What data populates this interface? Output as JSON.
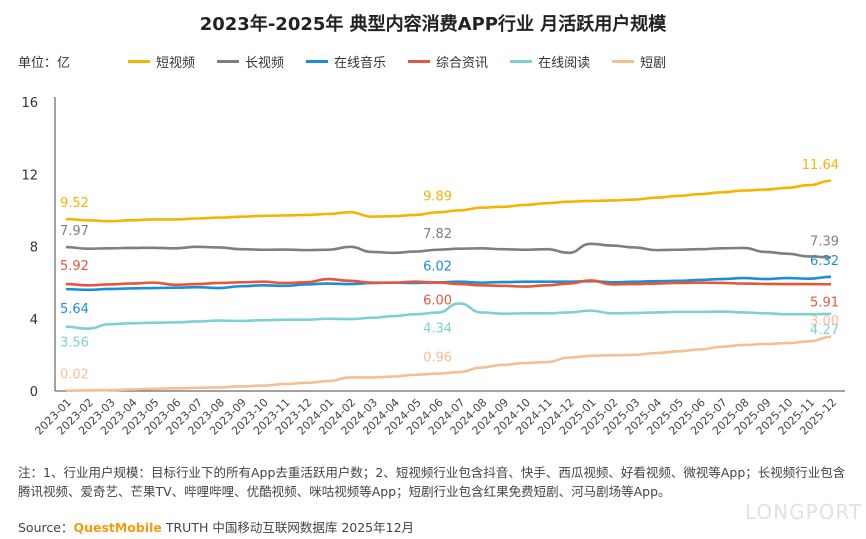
{
  "title": "2023年-2025年 典型内容消费APP行业 月活跃用户规模",
  "unit": "单位：亿",
  "notes": "注：1、行业用户规模：目标行业下的所有App去重活跃用户数；2、短视频行业包含抖音、快手、西瓜视频、好看视频、微视等App；长视频行业包含腾讯视频、爱奇艺、芒果TV、哔哩哔哩、优酷视频、咪咕视频等App；短剧行业包含红果免费短剧、河马剧场等App。",
  "source": {
    "prefix": "Source：",
    "brand": "QuestMobile",
    "rest": " TRUTH 中国移动互联网数据库 2025年12月"
  },
  "watermark": "LONGPORT",
  "chart_data": {
    "type": "line",
    "title": "2023年-2025年 典型内容消费APP行业 月活跃用户规模",
    "ylabel": "单位：亿",
    "ylim": [
      0,
      16
    ],
    "yticks": [
      0,
      4,
      8,
      12,
      16
    ],
    "legend": "top",
    "x": [
      "2023-01",
      "2023-02",
      "2023-03",
      "2023-04",
      "2023-05",
      "2023-06",
      "2023-07",
      "2023-08",
      "2023-09",
      "2023-10",
      "2023-11",
      "2023-12",
      "2024-01",
      "2024-02",
      "2024-03",
      "2024-04",
      "2024-05",
      "2024-06",
      "2024-07",
      "2024-08",
      "2024-09",
      "2024-10",
      "2024-11",
      "2024-12",
      "2025-01",
      "2025-02",
      "2025-03",
      "2025-04",
      "2025-05",
      "2025-06",
      "2025-07",
      "2025-08",
      "2025-09",
      "2025-10",
      "2025-11",
      "2025-12"
    ],
    "series": [
      {
        "name": "短视频",
        "color": "#f5b400",
        "labels": [
          0,
          17,
          35
        ],
        "label_pos": "above",
        "values": [
          9.52,
          9.45,
          9.4,
          9.45,
          9.5,
          9.5,
          9.55,
          9.6,
          9.65,
          9.7,
          9.72,
          9.75,
          9.8,
          9.9,
          9.65,
          9.68,
          9.75,
          9.89,
          10.0,
          10.15,
          10.2,
          10.3,
          10.4,
          10.48,
          10.52,
          10.55,
          10.6,
          10.7,
          10.8,
          10.9,
          11.0,
          11.1,
          11.15,
          11.25,
          11.4,
          11.64
        ]
      },
      {
        "name": "长视频",
        "color": "#7f7f7f",
        "labels": [
          0,
          17,
          35
        ],
        "label_pos": "above",
        "values": [
          7.97,
          7.88,
          7.9,
          7.92,
          7.93,
          7.9,
          7.98,
          7.95,
          7.85,
          7.82,
          7.83,
          7.8,
          7.82,
          7.98,
          7.7,
          7.65,
          7.72,
          7.82,
          7.88,
          7.9,
          7.85,
          7.82,
          7.85,
          7.65,
          8.15,
          8.05,
          7.95,
          7.8,
          7.82,
          7.85,
          7.9,
          7.92,
          7.7,
          7.6,
          7.45,
          7.39
        ]
      },
      {
        "name": "在线音乐",
        "color": "#1a8fd6",
        "labels": [
          0,
          17,
          35
        ],
        "label_pos": "music",
        "values": [
          5.64,
          5.6,
          5.65,
          5.68,
          5.7,
          5.72,
          5.75,
          5.7,
          5.8,
          5.85,
          5.82,
          5.9,
          5.95,
          5.92,
          5.98,
          6.0,
          5.98,
          6.02,
          6.05,
          6.0,
          6.03,
          6.05,
          6.05,
          6.05,
          6.08,
          6.02,
          6.05,
          6.08,
          6.1,
          6.15,
          6.2,
          6.25,
          6.2,
          6.25,
          6.22,
          6.32
        ]
      },
      {
        "name": "综合资讯",
        "color": "#e5573a",
        "labels": [
          0,
          17,
          35
        ],
        "label_pos": "news",
        "values": [
          5.92,
          5.85,
          5.9,
          5.95,
          6.0,
          5.88,
          5.92,
          5.98,
          6.02,
          6.05,
          5.98,
          6.02,
          6.2,
          6.1,
          6.0,
          6.0,
          6.05,
          6.0,
          5.92,
          5.85,
          5.82,
          5.78,
          5.85,
          5.95,
          6.12,
          5.9,
          5.92,
          5.95,
          5.98,
          6.0,
          5.98,
          5.95,
          5.93,
          5.92,
          5.92,
          5.91
        ]
      },
      {
        "name": "在线阅读",
        "color": "#7fd0d4",
        "labels": [
          0,
          17,
          35
        ],
        "label_pos": "below",
        "values": [
          3.56,
          3.45,
          3.7,
          3.75,
          3.78,
          3.8,
          3.85,
          3.9,
          3.88,
          3.92,
          3.95,
          3.95,
          4.0,
          3.98,
          4.05,
          4.15,
          4.25,
          4.34,
          4.85,
          4.35,
          4.28,
          4.3,
          4.3,
          4.35,
          4.45,
          4.3,
          4.32,
          4.35,
          4.38,
          4.38,
          4.4,
          4.35,
          4.3,
          4.25,
          4.25,
          4.27
        ]
      },
      {
        "name": "短剧",
        "color": "#f7be92",
        "labels": [
          0,
          17,
          35
        ],
        "label_pos": "above",
        "values": [
          0.02,
          0.03,
          0.05,
          0.08,
          0.12,
          0.15,
          0.18,
          0.2,
          0.25,
          0.3,
          0.38,
          0.45,
          0.55,
          0.75,
          0.75,
          0.8,
          0.9,
          0.96,
          1.05,
          1.3,
          1.45,
          1.55,
          1.6,
          1.85,
          1.95,
          1.98,
          2.0,
          2.1,
          2.2,
          2.3,
          2.45,
          2.55,
          2.6,
          2.65,
          2.75,
          3.0
        ]
      }
    ]
  }
}
